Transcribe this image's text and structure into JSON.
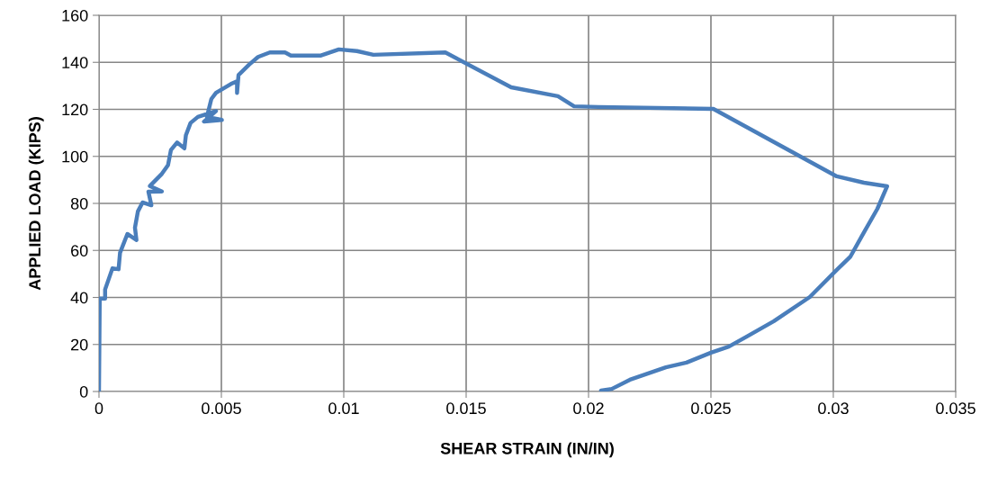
{
  "chart_data": {
    "type": "line",
    "xlabel": "SHEAR STRAIN (IN/IN)",
    "ylabel": "APPLIED LOAD (KIPS)",
    "xlim": [
      0,
      0.035
    ],
    "xticks": [
      0,
      0.005,
      0.01,
      0.015,
      0.02,
      0.025,
      0.03,
      0.035
    ],
    "ylim": [
      0,
      160
    ],
    "yticks": [
      0,
      20,
      40,
      60,
      80,
      100,
      120,
      140,
      160
    ],
    "grid": true,
    "series": [
      {
        "color": "#4a7ebb",
        "x": [
          0,
          3e-05,
          0.00025,
          0.00025,
          0.00055,
          0.0008,
          0.00086,
          0.00116,
          0.00153,
          0.00147,
          0.00159,
          0.00178,
          0.00214,
          0.00202,
          0.00257,
          0.00208,
          0.00257,
          0.00282,
          0.00294,
          0.00319,
          0.00349,
          0.00355,
          0.00374,
          0.00404,
          0.00478,
          0.00429,
          0.00502,
          0.00441,
          0.00459,
          0.00478,
          0.00539,
          0.00564,
          0.00564,
          0.0057,
          0.00613,
          0.0065,
          0.00698,
          0.0076,
          0.00784,
          0.00907,
          0.0098,
          0.01054,
          0.01121,
          0.01415,
          0.01684,
          0.01875,
          0.01941,
          0.0204,
          0.0251,
          0.03014,
          0.03125,
          0.0322,
          0.0318,
          0.03117,
          0.0307,
          0.03014,
          0.02904,
          0.02757,
          0.02647,
          0.02573,
          0.025,
          0.024,
          0.02316,
          0.02169,
          0.02095,
          0.02051
        ],
        "values": [
          0,
          39.5,
          39.5,
          43.4,
          52.4,
          52,
          59,
          67,
          64.4,
          69.7,
          76.6,
          80.4,
          79.2,
          85,
          85.1,
          87.4,
          92.6,
          96.3,
          102.7,
          105.9,
          103.4,
          109,
          114.2,
          116.8,
          119.3,
          114.8,
          115.5,
          116.8,
          124.4,
          127,
          130.8,
          132,
          127,
          134.6,
          139,
          142.3,
          144.2,
          144.2,
          142.9,
          142.9,
          145.5,
          144.8,
          143.2,
          144.2,
          129.4,
          125.6,
          121.3,
          121,
          120.2,
          91.5,
          88.8,
          87.3,
          77.7,
          66.2,
          57.4,
          51.7,
          40.2,
          29.9,
          23.4,
          19.1,
          16.5,
          12.3,
          10.3,
          5,
          1.1,
          0.4
        ]
      }
    ]
  }
}
